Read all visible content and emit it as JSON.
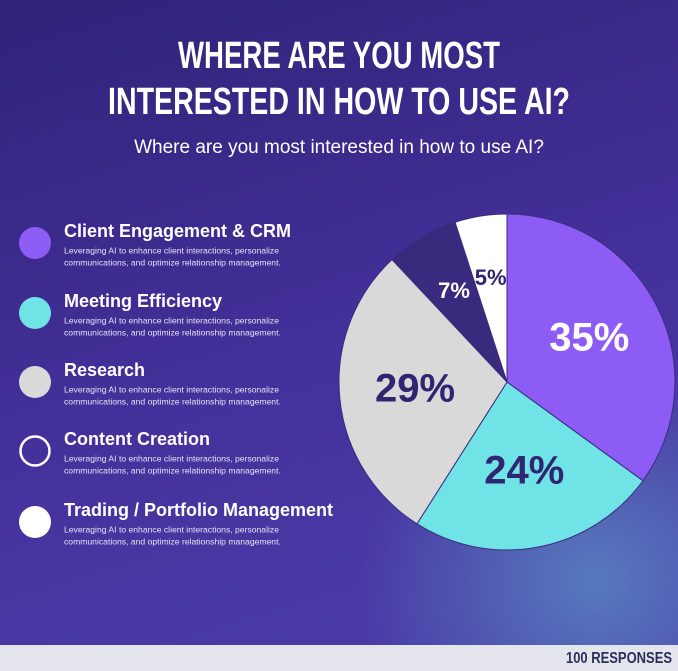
{
  "chart_data": {
    "type": "pie",
    "title": [
      "WHERE ARE YOU MOST",
      "INTERESTED IN HOW TO USE AI?"
    ],
    "subtitle": "Where are you most interested in how to use AI?",
    "categories": [
      "Client Engagement & CRM",
      "Meeting Efficiency",
      "Research",
      "Content Creation",
      "Trading / Portfolio Management"
    ],
    "descriptions": [
      [
        "Leveraging AI to enhance client interactions, personalize",
        "communications, and optimize relationship management."
      ],
      [
        "Leveraging AI to enhance client interactions, personalize",
        "communications, and optimize relationship management."
      ],
      [
        "Leveraging AI to enhance client interactions, personalize",
        "communications, and optimize relationship management."
      ],
      [
        "Leveraging AI to enhance client interactions, personalize",
        "communications, and optimize relationship management."
      ],
      [
        "Leveraging AI to enhance client interactions, personalize",
        "communications, and optimize relationship management."
      ]
    ],
    "values": [
      35,
      24,
      29,
      7,
      5
    ],
    "value_labels": [
      "35%",
      "24%",
      "29%",
      "7%",
      "5%"
    ],
    "colors": [
      "#8c5cf5",
      "#6fe3e6",
      "#d9d9d9",
      "#3a2a7e",
      "#ffffff"
    ],
    "label_colors": [
      "#ffffff",
      "#2f2570",
      "#2f2570",
      "#ffffff",
      "#2f2570"
    ],
    "footer": "100 RESPONSES"
  }
}
